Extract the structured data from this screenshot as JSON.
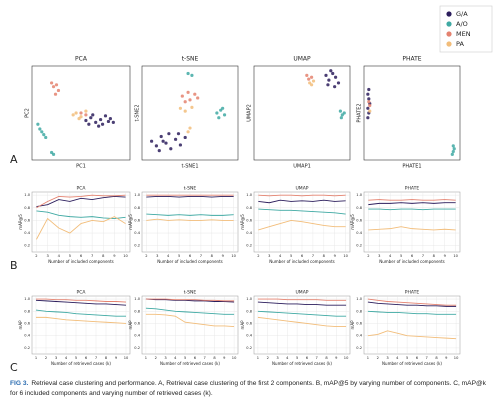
{
  "groups": [
    {
      "name": "G/A",
      "color": "#2b1d5c"
    },
    {
      "name": "A/O",
      "color": "#3fa9a3"
    },
    {
      "name": "MEN",
      "color": "#e4826f"
    },
    {
      "name": "PA",
      "color": "#f2bd7a"
    }
  ],
  "panel_labels": [
    "A",
    "B",
    "C"
  ],
  "chart_data": [
    {
      "type": "scatter",
      "title": "PCA",
      "x_label": "PC1",
      "y_label": "PC2",
      "series": [
        {
          "x": [
            0.55,
            0.6,
            0.65,
            0.7,
            0.72,
            0.75,
            0.78,
            0.8,
            0.68,
            0.62,
            0.83,
            0.58
          ],
          "y": [
            0.42,
            0.45,
            0.4,
            0.43,
            0.38,
            0.47,
            0.41,
            0.44,
            0.36,
            0.48,
            0.4,
            0.38
          ]
        },
        {
          "x": [
            0.06,
            0.08,
            0.1,
            0.12,
            0.14,
            0.2,
            0.22
          ],
          "y": [
            0.38,
            0.33,
            0.3,
            0.27,
            0.24,
            0.08,
            0.06
          ]
        },
        {
          "x": [
            0.2,
            0.22,
            0.25,
            0.27,
            0.24,
            0.5,
            0.55
          ],
          "y": [
            0.82,
            0.78,
            0.8,
            0.74,
            0.7,
            0.5,
            0.48
          ]
        },
        {
          "x": [
            0.42,
            0.45,
            0.5,
            0.48,
            0.55
          ],
          "y": [
            0.48,
            0.5,
            0.46,
            0.44,
            0.52
          ]
        }
      ]
    },
    {
      "type": "scatter",
      "title": "t-SNE",
      "x_label": "t-SNE1",
      "y_label": "t-SNE2",
      "series": [
        {
          "x": [
            0.1,
            0.15,
            0.2,
            0.25,
            0.3,
            0.35,
            0.4,
            0.45,
            0.18,
            0.28,
            0.38,
            0.22
          ],
          "y": [
            0.2,
            0.15,
            0.25,
            0.18,
            0.12,
            0.22,
            0.16,
            0.24,
            0.1,
            0.28,
            0.28,
            0.2
          ]
        },
        {
          "x": [
            0.78,
            0.82,
            0.86,
            0.8,
            0.84,
            0.48,
            0.52
          ],
          "y": [
            0.5,
            0.53,
            0.48,
            0.45,
            0.55,
            0.92,
            0.9
          ]
        },
        {
          "x": [
            0.42,
            0.48,
            0.55,
            0.5,
            0.58,
            0.45
          ],
          "y": [
            0.68,
            0.72,
            0.7,
            0.64,
            0.66,
            0.62
          ]
        },
        {
          "x": [
            0.4,
            0.45,
            0.52,
            0.48,
            0.5
          ],
          "y": [
            0.55,
            0.52,
            0.56,
            0.3,
            0.34
          ]
        }
      ]
    },
    {
      "type": "scatter",
      "title": "UMAP",
      "x_label": "UMAP1",
      "y_label": "UMAP2",
      "series": [
        {
          "x": [
            0.75,
            0.78,
            0.82,
            0.85,
            0.88,
            0.8,
            0.84,
            0.77
          ],
          "y": [
            0.9,
            0.85,
            0.92,
            0.88,
            0.82,
            0.95,
            0.78,
            0.8
          ]
        },
        {
          "x": [
            0.9,
            0.92,
            0.94,
            0.91
          ],
          "y": [
            0.52,
            0.48,
            0.5,
            0.45
          ]
        },
        {
          "x": [
            0.55,
            0.57,
            0.6
          ],
          "y": [
            0.9,
            0.86,
            0.88
          ]
        },
        {
          "x": [
            0.58,
            0.62,
            0.6
          ],
          "y": [
            0.82,
            0.84,
            0.8
          ]
        }
      ]
    },
    {
      "type": "scatter",
      "title": "PHATE",
      "x_label": "PHATE1",
      "y_label": "PHATE2",
      "series": [
        {
          "x": [
            0.04,
            0.05,
            0.04,
            0.06,
            0.05,
            0.04,
            0.05
          ],
          "y": [
            0.45,
            0.5,
            0.55,
            0.6,
            0.65,
            0.7,
            0.75
          ]
        },
        {
          "x": [
            0.92,
            0.93,
            0.94,
            0.93
          ],
          "y": [
            0.06,
            0.09,
            0.12,
            0.15
          ]
        },
        {
          "x": [
            0.05,
            0.06
          ],
          "y": [
            0.62,
            0.58
          ]
        },
        {
          "x": [
            0.06
          ],
          "y": [
            0.52
          ]
        }
      ]
    },
    {
      "type": "line",
      "title": "PCA",
      "x_label": "Number of included components",
      "y_label": "mAP@5",
      "x": [
        2,
        3,
        4,
        5,
        6,
        7,
        8,
        9,
        10
      ],
      "xlim": [
        1.6,
        10.4
      ],
      "ylim": [
        0.1,
        1.05
      ],
      "yticks": [
        0.2,
        0.4,
        0.6,
        0.8,
        {
          "value": 1.0,
          "label": "1.0"
        }
      ],
      "series": [
        {
          "values": [
            0.82,
            0.85,
            0.93,
            0.9,
            0.95,
            0.93,
            0.96,
            0.98,
            0.97
          ]
        },
        {
          "values": [
            0.75,
            0.73,
            0.68,
            0.66,
            0.65,
            0.66,
            0.64,
            0.63,
            0.65
          ]
        },
        {
          "values": [
            0.8,
            0.9,
            0.98,
            0.97,
            0.98,
            1.0,
            0.99,
            0.99,
            1.0
          ]
        },
        {
          "values": [
            0.3,
            0.63,
            0.48,
            0.4,
            0.55,
            0.6,
            0.58,
            0.66,
            0.55
          ]
        }
      ]
    },
    {
      "type": "line",
      "title": "t-SNE",
      "x_label": "Number of included components",
      "y_label": "mAP@5",
      "x": [
        2,
        3,
        4,
        5,
        6,
        7,
        8,
        9,
        10
      ],
      "xlim": [
        1.6,
        10.4
      ],
      "ylim": [
        0.1,
        1.05
      ],
      "yticks": [
        0.2,
        0.4,
        0.6,
        0.8,
        {
          "value": 1.0,
          "label": "1.0"
        }
      ],
      "series": [
        {
          "values": [
            0.97,
            0.98,
            0.98,
            0.97,
            0.98,
            0.98,
            0.97,
            0.98,
            0.98
          ]
        },
        {
          "values": [
            0.7,
            0.69,
            0.68,
            0.69,
            0.68,
            0.69,
            0.68,
            0.68,
            0.69
          ]
        },
        {
          "values": [
            1.0,
            1.0,
            1.0,
            1.0,
            1.0,
            1.0,
            1.0,
            1.0,
            1.0
          ]
        },
        {
          "values": [
            0.6,
            0.62,
            0.6,
            0.61,
            0.6,
            0.6,
            0.61,
            0.6,
            0.6
          ]
        }
      ]
    },
    {
      "type": "line",
      "title": "UMAP",
      "x_label": "Number of included components",
      "y_label": "mAP@5",
      "x": [
        2,
        3,
        4,
        5,
        6,
        7,
        8,
        9,
        10
      ],
      "xlim": [
        1.6,
        10.4
      ],
      "ylim": [
        0.1,
        1.05
      ],
      "yticks": [
        0.2,
        0.4,
        0.6,
        0.8,
        {
          "value": 1.0,
          "label": "1.0"
        }
      ],
      "series": [
        {
          "values": [
            0.9,
            0.88,
            0.92,
            0.9,
            0.91,
            0.9,
            0.92,
            0.9,
            0.91
          ]
        },
        {
          "values": [
            0.78,
            0.77,
            0.76,
            0.76,
            0.75,
            0.74,
            0.73,
            0.72,
            0.7
          ]
        },
        {
          "values": [
            1.0,
            0.99,
            1.0,
            1.0,
            0.99,
            1.0,
            1.0,
            0.99,
            1.0
          ]
        },
        {
          "values": [
            0.45,
            0.5,
            0.55,
            0.6,
            0.58,
            0.55,
            0.52,
            0.5,
            0.5
          ]
        }
      ]
    },
    {
      "type": "line",
      "title": "PHATE",
      "x_label": "Number of included components",
      "y_label": "mAP@5",
      "x": [
        2,
        3,
        4,
        5,
        6,
        7,
        8,
        9,
        10
      ],
      "xlim": [
        1.6,
        10.4
      ],
      "ylim": [
        0.1,
        1.05
      ],
      "yticks": [
        0.2,
        0.4,
        0.6,
        0.8,
        {
          "value": 1.0,
          "label": "1.0"
        }
      ],
      "series": [
        {
          "values": [
            0.85,
            0.87,
            0.87,
            0.88,
            0.87,
            0.88,
            0.87,
            0.88,
            0.88
          ]
        },
        {
          "values": [
            0.78,
            0.78,
            0.77,
            0.78,
            0.78,
            0.77,
            0.78,
            0.78,
            0.78
          ]
        },
        {
          "values": [
            0.92,
            0.93,
            0.92,
            0.92,
            0.93,
            0.92,
            0.92,
            0.93,
            0.92
          ]
        },
        {
          "values": [
            0.45,
            0.46,
            0.47,
            0.5,
            0.47,
            0.46,
            0.45,
            0.46,
            0.45
          ]
        }
      ]
    },
    {
      "type": "line",
      "title": "PCA",
      "x_label": "Number of retrieved cases (k)",
      "y_label": "mAP",
      "x": [
        1,
        2,
        3,
        4,
        5,
        6,
        7,
        8,
        9,
        10
      ],
      "xlim": [
        0.6,
        10.4
      ],
      "ylim": [
        0.1,
        1.05
      ],
      "yticks": [
        0.2,
        0.4,
        0.6,
        0.8,
        {
          "value": 1.0,
          "label": "1.0"
        }
      ],
      "series": [
        {
          "values": [
            0.98,
            0.97,
            0.96,
            0.95,
            0.94,
            0.93,
            0.92,
            0.92,
            0.91,
            0.9
          ]
        },
        {
          "values": [
            0.82,
            0.8,
            0.79,
            0.78,
            0.76,
            0.75,
            0.74,
            0.73,
            0.72,
            0.72
          ]
        },
        {
          "values": [
            1.0,
            1.0,
            0.99,
            0.99,
            0.98,
            0.98,
            0.97,
            0.96,
            0.96,
            0.95
          ]
        },
        {
          "values": [
            0.7,
            0.7,
            0.68,
            0.66,
            0.65,
            0.64,
            0.63,
            0.62,
            0.61,
            0.6
          ]
        }
      ]
    },
    {
      "type": "line",
      "title": "t-SNE",
      "x_label": "Number of retrieved cases (k)",
      "y_label": "mAP",
      "x": [
        1,
        2,
        3,
        4,
        5,
        6,
        7,
        8,
        9,
        10
      ],
      "xlim": [
        0.6,
        10.4
      ],
      "ylim": [
        0.1,
        1.05
      ],
      "yticks": [
        0.2,
        0.4,
        0.6,
        0.8,
        {
          "value": 1.0,
          "label": "1.0"
        }
      ],
      "series": [
        {
          "values": [
            1.0,
            0.99,
            0.99,
            0.98,
            0.98,
            0.97,
            0.97,
            0.96,
            0.96,
            0.95
          ]
        },
        {
          "values": [
            0.85,
            0.84,
            0.82,
            0.8,
            0.79,
            0.78,
            0.77,
            0.76,
            0.75,
            0.75
          ]
        },
        {
          "values": [
            1.0,
            1.0,
            1.0,
            0.99,
            0.99,
            0.99,
            0.98,
            0.98,
            0.97,
            0.97
          ]
        },
        {
          "values": [
            0.75,
            0.75,
            0.74,
            0.72,
            0.62,
            0.6,
            0.58,
            0.56,
            0.56,
            0.55
          ]
        }
      ]
    },
    {
      "type": "line",
      "title": "UMAP",
      "x_label": "Number of retrieved cases (k)",
      "y_label": "mAP",
      "x": [
        1,
        2,
        3,
        4,
        5,
        6,
        7,
        8,
        9,
        10
      ],
      "xlim": [
        0.6,
        10.4
      ],
      "ylim": [
        0.1,
        1.05
      ],
      "yticks": [
        0.2,
        0.4,
        0.6,
        0.8,
        {
          "value": 1.0,
          "label": "1.0"
        }
      ],
      "series": [
        {
          "values": [
            0.95,
            0.94,
            0.93,
            0.92,
            0.92,
            0.91,
            0.91,
            0.9,
            0.9,
            0.9
          ]
        },
        {
          "values": [
            0.8,
            0.79,
            0.78,
            0.77,
            0.76,
            0.75,
            0.74,
            0.73,
            0.72,
            0.72
          ]
        },
        {
          "values": [
            1.0,
            1.0,
            1.0,
            0.99,
            0.99,
            0.99,
            0.99,
            0.98,
            0.98,
            0.98
          ]
        },
        {
          "values": [
            0.7,
            0.68,
            0.66,
            0.64,
            0.62,
            0.6,
            0.58,
            0.56,
            0.55,
            0.55
          ]
        }
      ]
    },
    {
      "type": "line",
      "title": "PHATE",
      "x_label": "Number of retrieved cases (k)",
      "y_label": "mAP",
      "x": [
        1,
        2,
        3,
        4,
        5,
        6,
        7,
        8,
        9,
        10
      ],
      "xlim": [
        0.6,
        10.4
      ],
      "ylim": [
        0.1,
        1.05
      ],
      "yticks": [
        0.2,
        0.4,
        0.6,
        0.8,
        {
          "value": 1.0,
          "label": "1.0"
        }
      ],
      "series": [
        {
          "values": [
            0.95,
            0.93,
            0.92,
            0.91,
            0.9,
            0.9,
            0.89,
            0.89,
            0.88,
            0.88
          ]
        },
        {
          "values": [
            0.8,
            0.79,
            0.78,
            0.78,
            0.77,
            0.76,
            0.76,
            0.75,
            0.75,
            0.75
          ]
        },
        {
          "values": [
            1.0,
            0.98,
            0.96,
            0.95,
            0.94,
            0.93,
            0.92,
            0.91,
            0.9,
            0.9
          ]
        },
        {
          "values": [
            0.4,
            0.42,
            0.48,
            0.44,
            0.4,
            0.39,
            0.38,
            0.37,
            0.36,
            0.35
          ]
        }
      ]
    }
  ],
  "caption": {
    "label": "FIG 3.",
    "text": "Retrieval case clustering and performance. A, Retrieval case clustering of the first 2 components. B, mAP@5 by varying number of components. C, mAP@k for 6 included components and varying number of retrieved cases (k)."
  }
}
